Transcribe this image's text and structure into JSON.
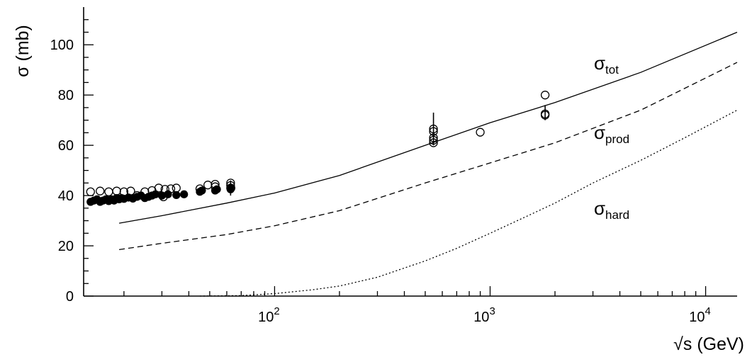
{
  "chart_data": {
    "type": "scatter",
    "xlabel": "√s (GeV)",
    "ylabel": "σ (mb)",
    "x_scale": "log",
    "xlim": [
      13,
      14000
    ],
    "ylim": [
      0,
      115
    ],
    "x_ticks": [
      {
        "value": 100,
        "base": "10",
        "exp": "2"
      },
      {
        "value": 1000,
        "base": "10",
        "exp": "3"
      },
      {
        "value": 10000,
        "base": "10",
        "exp": "4"
      }
    ],
    "y_ticks": [
      "0",
      "20",
      "40",
      "60",
      "80",
      "100"
    ],
    "grid": false,
    "legend": "none",
    "curves": [
      {
        "name": "tot",
        "label_symbol": "σ",
        "label_sub": "tot",
        "style": "solid",
        "x": [
          19,
          30,
          60,
          100,
          200,
          500,
          1000,
          2000,
          5000,
          14000
        ],
        "y": [
          29,
          32,
          37,
          41,
          48,
          60,
          69,
          77,
          89,
          105
        ]
      },
      {
        "name": "prod",
        "label_symbol": "σ",
        "label_sub": "prod",
        "style": "dashed",
        "x": [
          19,
          30,
          60,
          100,
          200,
          500,
          1000,
          2000,
          5000,
          14000
        ],
        "y": [
          18.5,
          21,
          24.5,
          28,
          34,
          45,
          53,
          61,
          74,
          93
        ]
      },
      {
        "name": "hard",
        "label_symbol": "σ",
        "label_sub": "hard",
        "style": "dotted",
        "x": [
          45,
          70,
          100,
          150,
          200,
          300,
          500,
          700,
          1000,
          1500,
          2000,
          3000,
          5000,
          8000,
          14000
        ],
        "y": [
          0,
          0.2,
          1,
          2.5,
          4,
          7.5,
          14,
          19,
          25,
          32,
          37,
          45,
          54,
          63,
          74
        ]
      }
    ],
    "series": [
      {
        "name": "open",
        "marker": "open-circle",
        "x": [
          14,
          15.5,
          17,
          18.5,
          20,
          21.5,
          23,
          25,
          27,
          29,
          31,
          33,
          35,
          30.5,
          45,
          49,
          53,
          53,
          62.5,
          62.5,
          62.5,
          546,
          546,
          546,
          546,
          546,
          900,
          1800,
          1800,
          1800
        ],
        "y": [
          41.5,
          41.8,
          41.5,
          41.8,
          41.5,
          41.8,
          40,
          41.5,
          42,
          43,
          42.5,
          42.7,
          43,
          39.5,
          42.7,
          44.2,
          44.5,
          43.5,
          45,
          44,
          43,
          66.5,
          65.5,
          63,
          62,
          61,
          65.2,
          80,
          72.5,
          72
        ]
      },
      {
        "name": "filled",
        "marker": "filled-circle",
        "x": [
          14,
          14.5,
          15,
          15.5,
          16,
          16.5,
          17,
          17.5,
          18,
          18.5,
          19,
          19.5,
          20,
          21,
          22,
          23,
          24,
          25,
          26,
          27,
          28,
          30,
          32,
          35,
          38,
          45,
          46,
          53,
          54,
          62.5,
          63
        ],
        "y": [
          37.5,
          38,
          38.5,
          37.5,
          38,
          38.5,
          37.8,
          38.5,
          38,
          39,
          38.5,
          39,
          38.7,
          39.2,
          38.8,
          39.5,
          40,
          39,
          39.5,
          40,
          40.5,
          40,
          40.5,
          40.2,
          40.5,
          41.5,
          42,
          42,
          42.5,
          42.5,
          43
        ]
      }
    ]
  }
}
